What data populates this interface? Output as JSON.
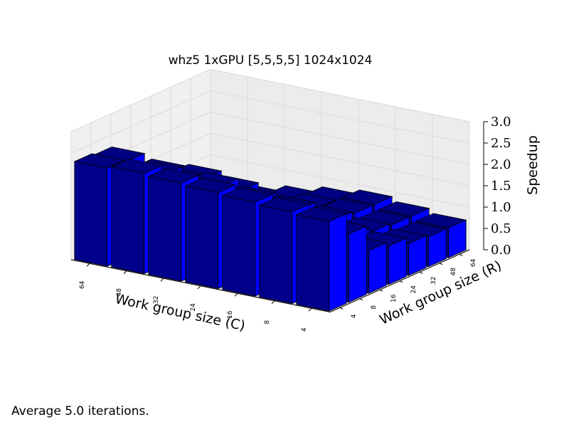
{
  "chart_data": {
    "type": "bar3d",
    "title": "whz5 1xGPU [5,5,5,5] 1024x1024",
    "xlabel": "Work group size (C)",
    "ylabel": "Work group size (R)",
    "zlabel": "Speedup",
    "x_ticks": [
      "64",
      "48",
      "32",
      "24",
      "16",
      "8",
      "4"
    ],
    "y_ticks": [
      "4",
      "8",
      "16",
      "24",
      "32",
      "48",
      "64"
    ],
    "z_ticks": [
      "0.0",
      "0.5",
      "1.0",
      "1.5",
      "2.0",
      "2.5",
      "3.0"
    ],
    "zlim": [
      0,
      3
    ],
    "grid": true,
    "colors": {
      "bar_top": "#000080",
      "bar_front": "#00008a",
      "bar_side": "#0000ff",
      "edge": "#000000"
    },
    "values": [
      [
        2.3,
        2.35,
        2.3,
        2.25,
        2.2,
        2.15,
        2.1
      ],
      [
        2.25,
        2.1,
        1.95,
        1.9,
        1.85,
        1.7,
        1.6
      ],
      [
        1.7,
        1.75,
        1.8,
        1.65,
        1.3,
        1.1,
        1.0
      ],
      [
        1.55,
        1.6,
        1.5,
        1.2,
        1.0,
        0.95,
        0.9
      ],
      [
        1.0,
        0.8,
        0.9,
        1.0,
        0.95,
        0.85,
        0.75
      ],
      [
        0.5,
        0.65,
        0.7,
        0.85,
        0.9,
        0.8,
        0.7
      ],
      [
        0.3,
        0.5,
        0.65,
        0.8,
        0.9,
        0.8,
        0.7
      ]
    ]
  },
  "footnote": "Average 5.0 iterations."
}
